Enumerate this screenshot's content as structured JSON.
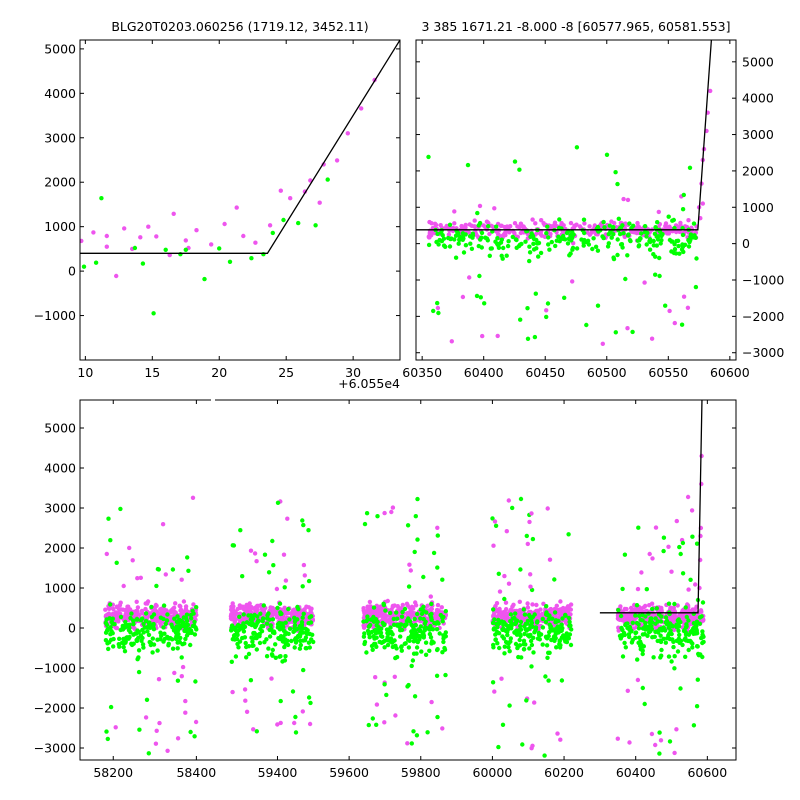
{
  "colors": {
    "magenta": "#ee55ee",
    "green": "#00ff00",
    "model_line": "#000000",
    "background": "#ffffff"
  },
  "titles": {
    "left": "BLG20T0203.060256 (1719.12, 3452.11)",
    "right": "3 385 1671.21 -8.000 -8 [60577.965, 60581.553]"
  },
  "chart_data": [
    {
      "type": "scatter",
      "panel": "zoom",
      "title": "BLG20T0203.060256 (1719.12, 3452.11)",
      "x_offset_label": "+6.055e4",
      "xlim": [
        9.6,
        33.5
      ],
      "ylim": [
        -2000,
        5200
      ],
      "xticks": [
        10,
        15,
        20,
        25,
        30
      ],
      "yticks": [
        -1000,
        0,
        1000,
        2000,
        3000,
        4000,
        5000
      ],
      "grid": false,
      "series": [
        {
          "color": "magenta",
          "points": [
            [
              9.7,
              680
            ],
            [
              10.6,
              870
            ],
            [
              11.6,
              790
            ],
            [
              11.6,
              550
            ],
            [
              12.3,
              -110
            ],
            [
              12.9,
              960
            ],
            [
              13.5,
              500
            ],
            [
              14.1,
              760
            ],
            [
              14.7,
              1000
            ],
            [
              15.3,
              780
            ],
            [
              16.3,
              360
            ],
            [
              16.6,
              1290
            ],
            [
              17.5,
              690
            ],
            [
              17.7,
              520
            ],
            [
              18.3,
              920
            ],
            [
              19.4,
              600
            ],
            [
              20.4,
              1060
            ],
            [
              21.3,
              1430
            ],
            [
              21.8,
              790
            ],
            [
              22.7,
              640
            ],
            [
              23.8,
              1030
            ],
            [
              24.6,
              1810
            ],
            [
              25.3,
              1640
            ],
            [
              26.4,
              1790
            ],
            [
              26.8,
              2040
            ],
            [
              27.5,
              1540
            ],
            [
              27.8,
              2400
            ],
            [
              28.8,
              2490
            ],
            [
              29.6,
              3100
            ],
            [
              30.6,
              3660
            ],
            [
              31.6,
              4300
            ]
          ]
        },
        {
          "color": "green",
          "points": [
            [
              9.9,
              100
            ],
            [
              10.8,
              190
            ],
            [
              11.2,
              1640
            ],
            [
              13.7,
              520
            ],
            [
              14.3,
              170
            ],
            [
              15.1,
              -950
            ],
            [
              16.0,
              480
            ],
            [
              17.1,
              380
            ],
            [
              17.5,
              480
            ],
            [
              18.9,
              -180
            ],
            [
              20.0,
              510
            ],
            [
              20.8,
              210
            ],
            [
              22.4,
              290
            ],
            [
              23.3,
              380
            ],
            [
              24.0,
              860
            ],
            [
              24.8,
              1150
            ],
            [
              25.9,
              1080
            ],
            [
              27.2,
              1030
            ],
            [
              28.1,
              2060
            ]
          ]
        }
      ],
      "model_line": {
        "x": [
          9.6,
          23.6,
          33.5
        ],
        "y": [
          400,
          400,
          5200
        ]
      }
    },
    {
      "type": "scatter",
      "panel": "season",
      "title": "3 385 1671.21 -8.000 -8 [60577.965, 60581.553]",
      "xlim": [
        60345,
        60605
      ],
      "ylim": [
        -3200,
        5600
      ],
      "xticks": [
        60350,
        60400,
        60450,
        60500,
        60550,
        60600
      ],
      "yticks": [
        -3000,
        -2000,
        -1000,
        0,
        1000,
        2000,
        3000,
        4000,
        5000
      ],
      "grid": false,
      "points_summary": {
        "x_range": [
          60355,
          60585
        ],
        "core_magenta_y": [
          -150,
          800
        ],
        "core_green_y": [
          -700,
          700
        ],
        "outlier_magenta_y": [
          -2400,
          3200
        ],
        "outlier_green_y": [
          -2900,
          5200
        ]
      },
      "model_line": {
        "x": [
          60345,
          60574,
          60585
        ],
        "y": [
          380,
          380,
          5600
        ]
      }
    },
    {
      "type": "scatter",
      "panel": "full",
      "xlim": [
        58120,
        60680
      ],
      "ylim": [
        -3300,
        5700
      ],
      "xticks": [
        58200,
        58400,
        59400,
        59600,
        59800,
        60000,
        60200,
        60400,
        60600
      ],
      "yticks": [
        -3000,
        -2000,
        -1000,
        0,
        1000,
        2000,
        3000,
        4000,
        5000
      ],
      "axis_break": [
        58440,
        59220
      ],
      "grid": false,
      "seasons": [
        [
          58180,
          58400
        ],
        [
          59270,
          59500
        ],
        [
          59640,
          59870
        ],
        [
          60000,
          60220
        ],
        [
          60350,
          60590
        ]
      ],
      "model_line": {
        "x": [
          60300,
          60574,
          60585
        ],
        "y": [
          380,
          380,
          5700
        ]
      }
    }
  ]
}
